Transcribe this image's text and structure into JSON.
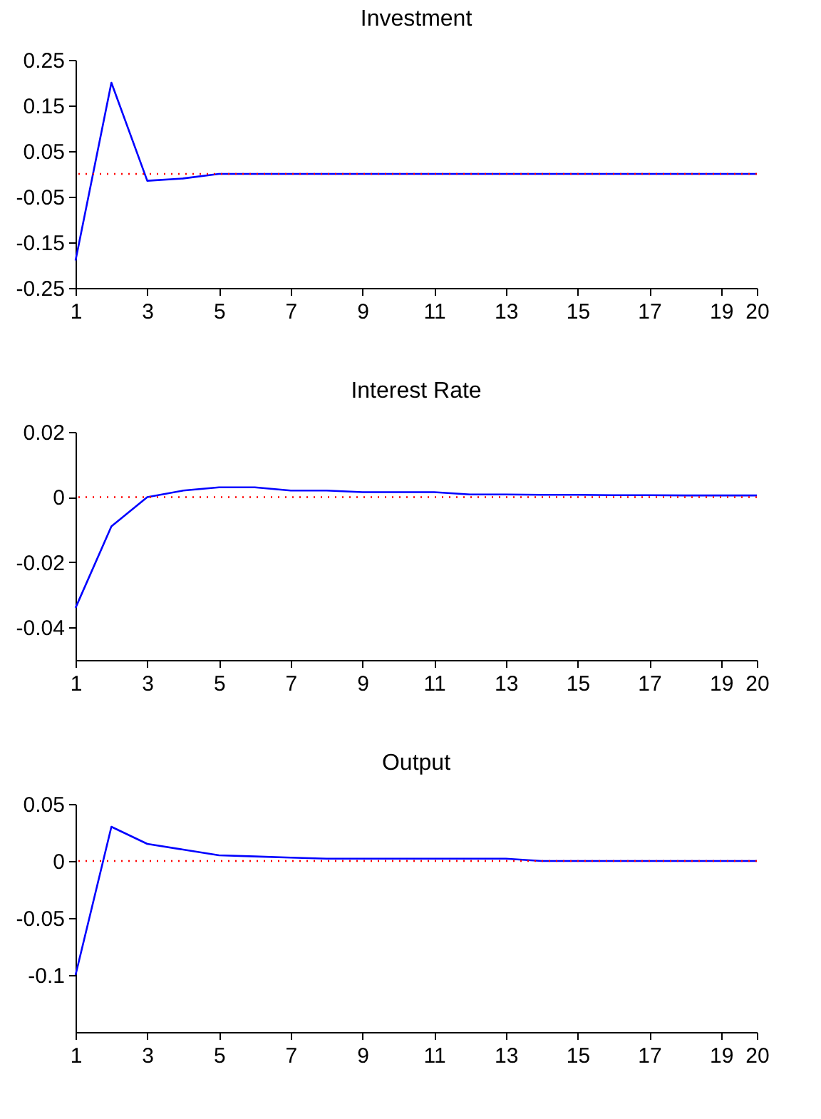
{
  "chart_data": [
    {
      "type": "line",
      "title": "Investment",
      "x": [
        1,
        2,
        3,
        4,
        5,
        6,
        7,
        8,
        9,
        10,
        11,
        12,
        13,
        14,
        15,
        16,
        17,
        18,
        19,
        20
      ],
      "series": [
        {
          "color": "#0000ff",
          "values": [
            -0.19,
            0.2,
            -0.015,
            -0.01,
            0,
            0,
            0,
            0,
            0,
            0,
            0,
            0,
            0,
            0,
            0,
            0,
            0,
            0,
            0,
            0
          ]
        }
      ],
      "xlim": [
        1,
        20
      ],
      "xticks": [
        1,
        3,
        5,
        7,
        9,
        11,
        13,
        15,
        17,
        19,
        20
      ],
      "ylim": [
        -0.25,
        0.25
      ],
      "yticks": [
        -0.25,
        -0.15,
        -0.05,
        0.05,
        0.15,
        0.25
      ],
      "ref_lines": [
        {
          "axis": "y",
          "value": 0,
          "color": "#ff0000",
          "line_style": "dotted"
        }
      ],
      "grid": false
    },
    {
      "type": "line",
      "title": "Interest Rate",
      "x": [
        1,
        2,
        3,
        4,
        5,
        6,
        7,
        8,
        9,
        10,
        11,
        12,
        13,
        14,
        15,
        16,
        17,
        18,
        19,
        20
      ],
      "series": [
        {
          "color": "#0000ff",
          "values": [
            -0.034,
            -0.009,
            0,
            0.002,
            0.003,
            0.003,
            0.002,
            0.002,
            0.0015,
            0.0015,
            0.0015,
            0.0008,
            0.0008,
            0.0007,
            0.0007,
            0.0006,
            0.0006,
            0.0005,
            0.0005,
            0.0005
          ]
        }
      ],
      "xlim": [
        1,
        20
      ],
      "xticks": [
        1,
        3,
        5,
        7,
        9,
        11,
        13,
        15,
        17,
        19,
        20
      ],
      "ylim": [
        -0.05,
        0.02
      ],
      "yticks": [
        -0.04,
        -0.02,
        0,
        0.02
      ],
      "ref_lines": [
        {
          "axis": "y",
          "value": 0,
          "color": "#ff0000",
          "line_style": "dotted"
        }
      ],
      "grid": false
    },
    {
      "type": "line",
      "title": "Output",
      "x": [
        1,
        2,
        3,
        4,
        5,
        6,
        7,
        8,
        9,
        10,
        11,
        12,
        13,
        14,
        15,
        16,
        17,
        18,
        19,
        20
      ],
      "series": [
        {
          "color": "#0000ff",
          "values": [
            -0.1,
            0.03,
            0.015,
            0.01,
            0.005,
            0.004,
            0.003,
            0.002,
            0.002,
            0.002,
            0.002,
            0.002,
            0.002,
            0,
            0,
            0,
            0,
            0,
            0,
            0
          ]
        }
      ],
      "xlim": [
        1,
        20
      ],
      "xticks": [
        1,
        3,
        5,
        7,
        9,
        11,
        13,
        15,
        17,
        19,
        20
      ],
      "ylim": [
        -0.15,
        0.05
      ],
      "yticks": [
        -0.1,
        -0.05,
        0,
        0.05
      ],
      "ref_lines": [
        {
          "axis": "y",
          "value": 0,
          "color": "#ff0000",
          "line_style": "dotted"
        }
      ],
      "grid": false
    }
  ]
}
